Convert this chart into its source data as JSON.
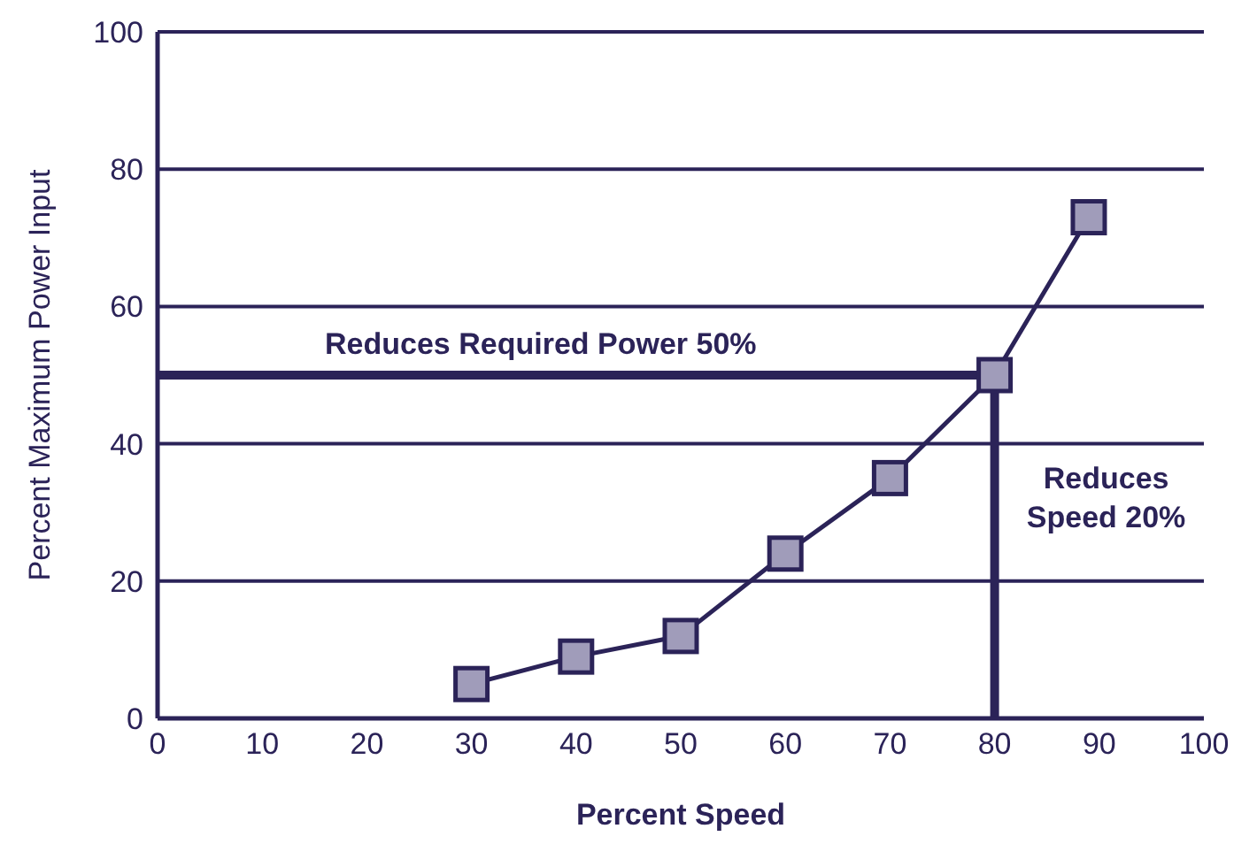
{
  "chart_data": {
    "type": "line",
    "xlabel": "Percent Speed",
    "ylabel": "Percent Maximum Power Input",
    "x": [
      30,
      40,
      50,
      60,
      70,
      80,
      89
    ],
    "series": [
      {
        "color": "#2b2358",
        "values": [
          5,
          9,
          12,
          24,
          35,
          50,
          73
        ]
      }
    ],
    "marker": "square",
    "line_style": "solid",
    "xlim": [
      0,
      100
    ],
    "xticks": [
      0,
      10,
      20,
      30,
      40,
      50,
      60,
      70,
      80,
      90,
      100
    ],
    "ylim": [
      0,
      100
    ],
    "yticks": [
      0,
      20,
      40,
      60,
      80,
      100
    ],
    "grid": "y",
    "legend": false,
    "ref_lines": [
      {
        "axis": "y",
        "value": 50,
        "label": "Reduces Required Power 50%",
        "color": "#2b2358"
      },
      {
        "axis": "x",
        "value": 80,
        "label": "Reduces Speed 20%",
        "color": "#2b2358"
      }
    ]
  }
}
